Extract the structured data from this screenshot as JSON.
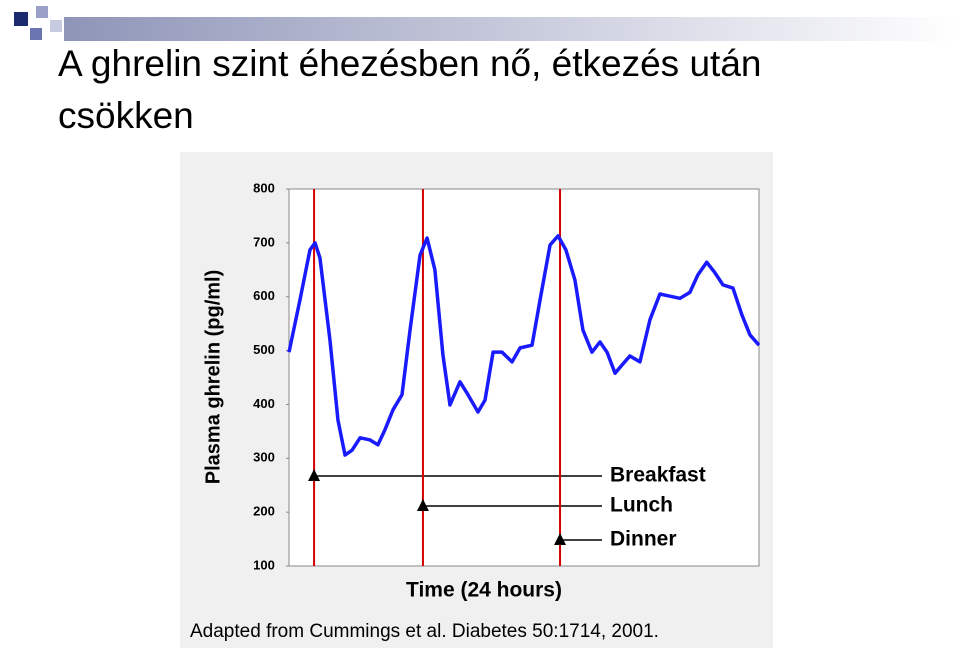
{
  "chart_data": {
    "type": "line",
    "title": "A ghrelin szint éhezésben nő, étkezés után csökken",
    "x_label": "Time (24 hours)",
    "y_label": "Plasma ghrelin (pg/ml)",
    "source": "Adapted from Cummings et al.  Diabetes 50:1714, 2001.",
    "xlim": [
      0,
      24
    ],
    "ylim": [
      100,
      800
    ],
    "yticks": [
      100,
      200,
      300,
      400,
      500,
      600,
      700,
      800
    ],
    "x": [
      0,
      0.56,
      1.07,
      1.33,
      1.58,
      2.09,
      2.5,
      2.86,
      3.22,
      3.63,
      4.14,
      4.54,
      4.9,
      5.31,
      5.77,
      6.18,
      6.69,
      7.05,
      7.45,
      7.86,
      8.22,
      8.73,
      9.14,
      9.65,
      10.01,
      10.42,
      10.88,
      11.39,
      11.8,
      12.41,
      12.82,
      13.33,
      13.74,
      14.14,
      14.6,
      15.01,
      15.47,
      15.88,
      16.24,
      16.65,
      17,
      17.41,
      17.92,
      18.43,
      18.94,
      19.45,
      19.96,
      20.47,
      20.87,
      21.33,
      21.74,
      22.16,
      22.67,
      23.13,
      23.54,
      24
    ],
    "series": [
      {
        "name": "Plasma ghrelin",
        "color": "#1a1aff",
        "values": [
          497,
          594,
          687,
          700,
          672,
          520,
          371,
          306,
          315,
          338,
          334,
          325,
          353,
          390,
          418,
          538,
          677,
          709,
          650,
          492,
          399,
          442,
          418,
          386,
          408,
          497,
          497,
          479,
          505,
          510,
          594,
          696,
          713,
          687,
          631,
          538,
          497,
          516,
          497,
          458,
          473,
          490,
          479,
          557,
          605,
          601,
          597,
          608,
          640,
          664,
          645,
          622,
          616,
          566,
          529,
          510
        ]
      }
    ],
    "meals": [
      {
        "label": "Breakfast",
        "x": 1.28
      },
      {
        "label": "Lunch",
        "x": 6.84
      },
      {
        "label": "Dinner",
        "x": 13.84
      }
    ],
    "meal_color": "#d40000"
  }
}
